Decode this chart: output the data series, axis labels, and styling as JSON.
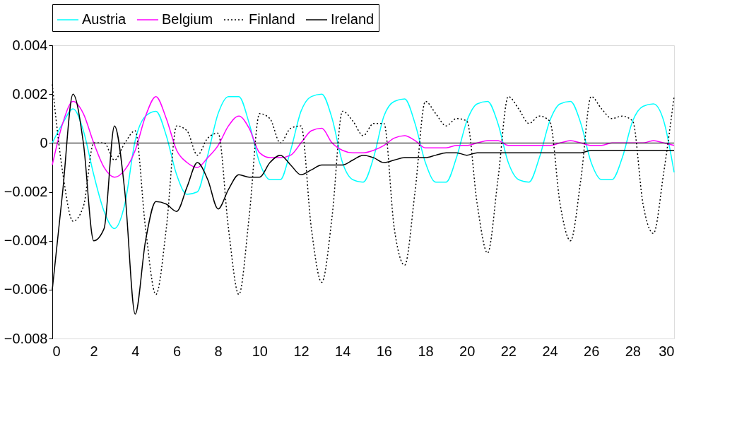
{
  "chart_data": {
    "type": "line",
    "legend": "top",
    "grid": false,
    "marker": "none",
    "x": [
      0,
      0.5,
      1,
      1.5,
      2,
      2.5,
      3,
      3.5,
      4,
      4.5,
      5,
      5.5,
      6,
      6.5,
      7,
      7.5,
      8,
      8.5,
      9,
      9.5,
      10,
      10.5,
      11,
      11.5,
      12,
      12.5,
      13,
      13.5,
      14,
      14.5,
      15,
      15.5,
      16,
      16.5,
      17,
      17.5,
      18,
      18.5,
      19,
      19.5,
      20,
      20.5,
      21,
      21.5,
      22,
      22.5,
      23,
      23.5,
      24,
      24.5,
      25,
      25.5,
      26,
      26.5,
      27,
      27.5,
      28,
      28.5,
      29,
      29.5,
      30
    ],
    "xlim": [
      0,
      30
    ],
    "xticks": [
      0,
      2,
      4,
      6,
      8,
      10,
      12,
      14,
      16,
      18,
      20,
      22,
      24,
      26,
      28,
      30
    ],
    "ylim": [
      -0.008,
      0.004
    ],
    "yticks": [
      -0.008,
      -0.006,
      -0.004,
      -0.002,
      0,
      0.002,
      0.004
    ],
    "ref_lines": [
      {
        "axis": "y",
        "value": 0,
        "color": "#000000",
        "line_style": "solid"
      }
    ],
    "series": [
      {
        "name": "Austria",
        "color": "#00ffff",
        "line_style": "solid",
        "values": [
          0,
          0.0008,
          0.0014,
          0.0005,
          -0.0013,
          -0.0028,
          -0.0035,
          -0.0025,
          0.0001,
          0.0011,
          0.0013,
          0.0003,
          -0.0013,
          -0.0021,
          -0.002,
          -0.0005,
          0.0012,
          0.0019,
          0.0019,
          0.0008,
          -0.0008,
          -0.0015,
          -0.0015,
          -0.0003,
          0.0013,
          0.0019,
          0.002,
          0.001,
          -0.0008,
          -0.0015,
          -0.0016,
          -0.0006,
          0.0011,
          0.0017,
          0.0018,
          0.0008,
          -0.0008,
          -0.0016,
          -0.0016,
          -0.0006,
          0.0009,
          0.0016,
          0.0017,
          0.0008,
          -0.0008,
          -0.0015,
          -0.0016,
          -0.0006,
          0.0009,
          0.0016,
          0.0017,
          0.0008,
          -0.0008,
          -0.0015,
          -0.0015,
          -0.0006,
          0.0009,
          0.0015,
          0.0016,
          0.0009,
          -0.0012
        ]
      },
      {
        "name": "Belgium",
        "color": "#ff00ff",
        "line_style": "solid",
        "values": [
          -0.0009,
          0.0008,
          0.0017,
          0.0012,
          0,
          -0.001,
          -0.0014,
          -0.0011,
          -0.0003,
          0.0011,
          0.0019,
          0.001,
          -0.0003,
          -0.0008,
          -0.001,
          -0.0006,
          -0.0001,
          0.0007,
          0.0011,
          0.0006,
          -0.0004,
          -0.0006,
          -0.0006,
          -0.0005,
          0,
          0.0005,
          0.0006,
          0,
          -0.0003,
          -0.0004,
          -0.0004,
          -0.0003,
          -0.0001,
          0.0002,
          0.0003,
          0.0001,
          -0.0002,
          -0.0002,
          -0.0002,
          -0.0001,
          -0.0001,
          0,
          0.0001,
          0.0001,
          -0.0001,
          -0.0001,
          -0.0001,
          -0.0001,
          -0.0001,
          0,
          0.0001,
          0,
          -0.0001,
          -0.0001,
          0,
          0,
          0,
          0,
          0.0001,
          0,
          -0.0001
        ]
      },
      {
        "name": "Finland",
        "color": "#000000",
        "line_style": "dotted",
        "values": [
          0.0024,
          -0.0012,
          -0.0032,
          -0.0026,
          0,
          0,
          -0.0007,
          0,
          0.0005,
          -0.0035,
          -0.0062,
          -0.0035,
          0.0007,
          0.0005,
          -0.0005,
          0.0002,
          0.0004,
          -0.0035,
          -0.0062,
          -0.003,
          0.0012,
          0.001,
          0,
          0.0006,
          0.0007,
          -0.0035,
          -0.0057,
          -0.003,
          0.0013,
          0.0009,
          0.0003,
          0.0008,
          0.0008,
          -0.0035,
          -0.005,
          -0.002,
          0.0017,
          0.0012,
          0.0007,
          0.001,
          0.0009,
          -0.0025,
          -0.0045,
          -0.0015,
          0.0019,
          0.0014,
          0.0008,
          0.0011,
          0.0009,
          -0.0025,
          -0.004,
          -0.0015,
          0.0019,
          0.0014,
          0.001,
          0.0011,
          0.0009,
          -0.0025,
          -0.0037,
          -0.0012,
          0.0019
        ]
      },
      {
        "name": "Ireland",
        "color": "#000000",
        "line_style": "solid",
        "values": [
          -0.006,
          -0.002,
          0.002,
          0,
          -0.004,
          -0.0035,
          0.0007,
          -0.002,
          -0.007,
          -0.004,
          -0.0024,
          -0.0025,
          -0.0028,
          -0.0018,
          -0.0008,
          -0.0015,
          -0.0027,
          -0.0019,
          -0.0013,
          -0.0014,
          -0.0014,
          -0.0008,
          -0.0005,
          -0.0009,
          -0.0013,
          -0.0011,
          -0.0009,
          -0.0009,
          -0.0009,
          -0.0007,
          -0.0005,
          -0.0006,
          -0.0008,
          -0.0007,
          -0.0006,
          -0.0006,
          -0.0006,
          -0.0005,
          -0.0004,
          -0.0004,
          -0.0005,
          -0.0004,
          -0.0004,
          -0.0004,
          -0.0004,
          -0.0004,
          -0.0004,
          -0.0004,
          -0.0004,
          -0.0004,
          -0.0004,
          -0.0004,
          -0.0003,
          -0.0003,
          -0.0003,
          -0.0003,
          -0.0003,
          -0.0003,
          -0.0003,
          -0.0003,
          -0.0003
        ]
      }
    ]
  }
}
